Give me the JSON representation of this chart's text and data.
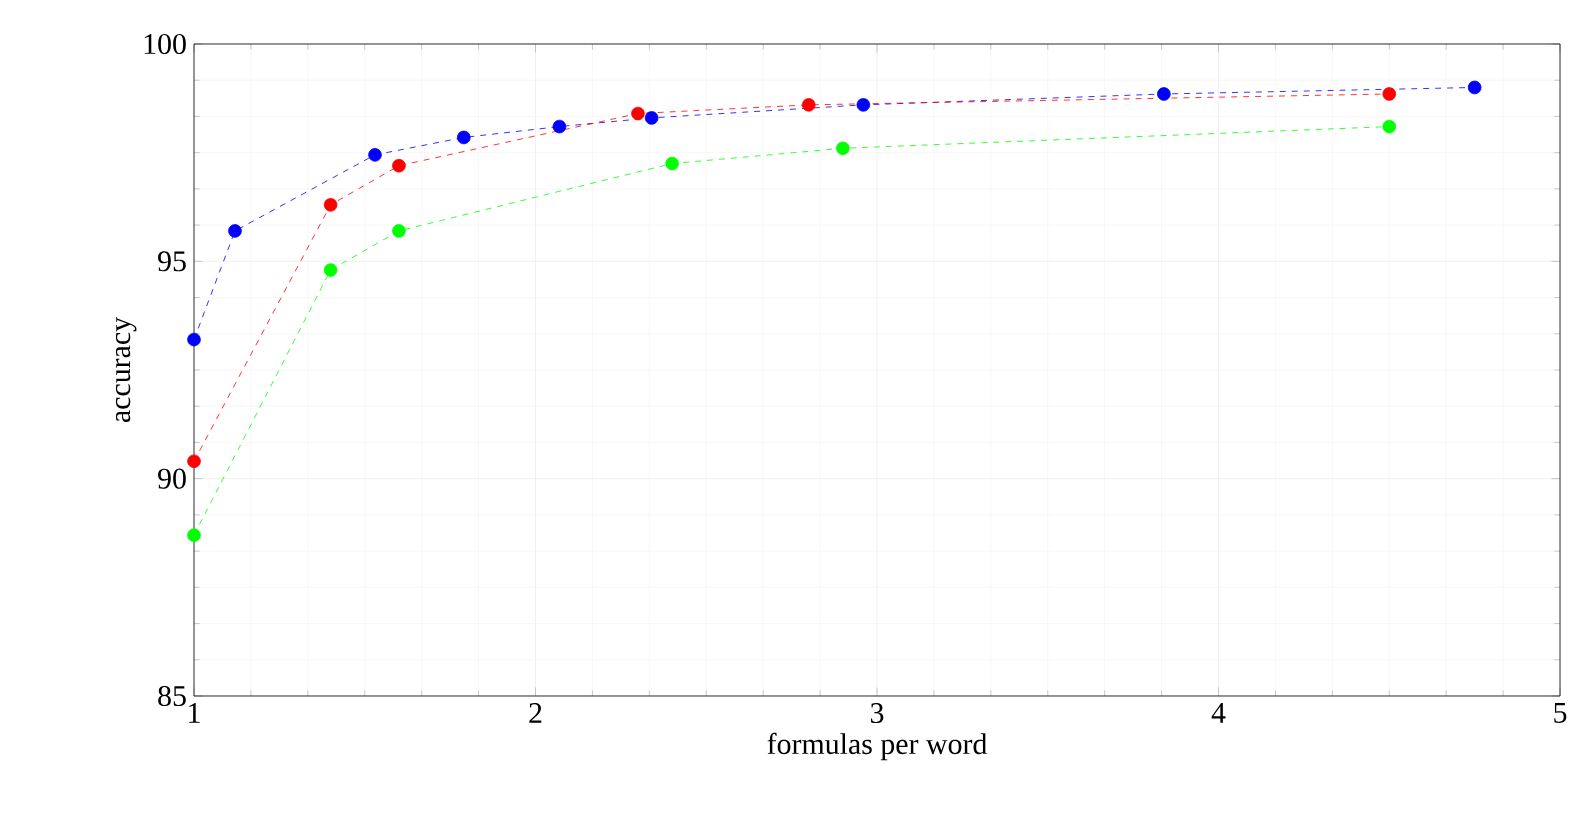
{
  "chart_data": {
    "type": "line",
    "xlabel": "formulas per word",
    "ylabel": "accuracy",
    "xlim": [
      1,
      5
    ],
    "ylim": [
      85,
      100
    ],
    "xticks": [
      1,
      2,
      3,
      4,
      5
    ],
    "yticks": [
      85,
      90,
      95,
      100
    ],
    "grid": true,
    "marker": "circle",
    "line_style": "dashed",
    "series": [
      {
        "color": "#0000ff",
        "x": [
          1,
          1.12,
          1.53,
          1.79,
          2.07,
          2.34,
          2.96,
          3.84,
          4.75
        ],
        "values": [
          93.2,
          95.7,
          97.45,
          97.85,
          98.1,
          98.3,
          98.6,
          98.85,
          99.0
        ]
      },
      {
        "color": "#ff0000",
        "x": [
          1,
          1.4,
          1.6,
          2.3,
          2.8,
          4.5
        ],
        "values": [
          90.4,
          96.3,
          97.2,
          98.4,
          98.6,
          98.85
        ]
      },
      {
        "color": "#00ff00",
        "x": [
          1,
          1.4,
          1.6,
          2.4,
          2.9,
          4.5
        ],
        "values": [
          88.7,
          94.8,
          95.7,
          97.25,
          97.6,
          98.1
        ]
      }
    ]
  }
}
